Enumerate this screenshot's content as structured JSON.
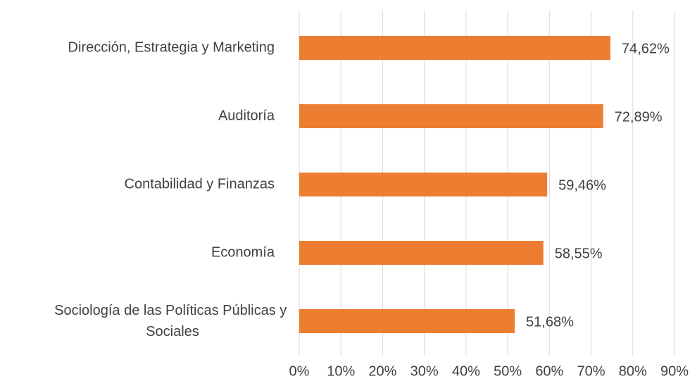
{
  "chart_data": {
    "type": "bar",
    "orientation": "horizontal",
    "categories": [
      "Dirección, Estrategia y Marketing",
      "Auditoría",
      "Contabilidad y Finanzas",
      "Economía",
      "Sociología de las Políticas Públicas y Sociales"
    ],
    "values": [
      74.62,
      72.89,
      59.46,
      58.55,
      51.68
    ],
    "value_labels": [
      "74,62%",
      "72,89%",
      "59,46%",
      "58,55%",
      "51,68%"
    ],
    "color": "#ed7d31",
    "xlim": [
      0,
      90
    ],
    "xticks": [
      {
        "value": 0,
        "label": "0%"
      },
      {
        "value": 10,
        "label": "10%"
      },
      {
        "value": 20,
        "label": "20%"
      },
      {
        "value": 30,
        "label": "30%"
      },
      {
        "value": 40,
        "label": "40%"
      },
      {
        "value": 50,
        "label": "50%"
      },
      {
        "value": 60,
        "label": "60%"
      },
      {
        "value": 70,
        "label": "70%"
      },
      {
        "value": 80,
        "label": "80%"
      },
      {
        "value": 90,
        "label": "90%"
      }
    ],
    "grid": true
  }
}
